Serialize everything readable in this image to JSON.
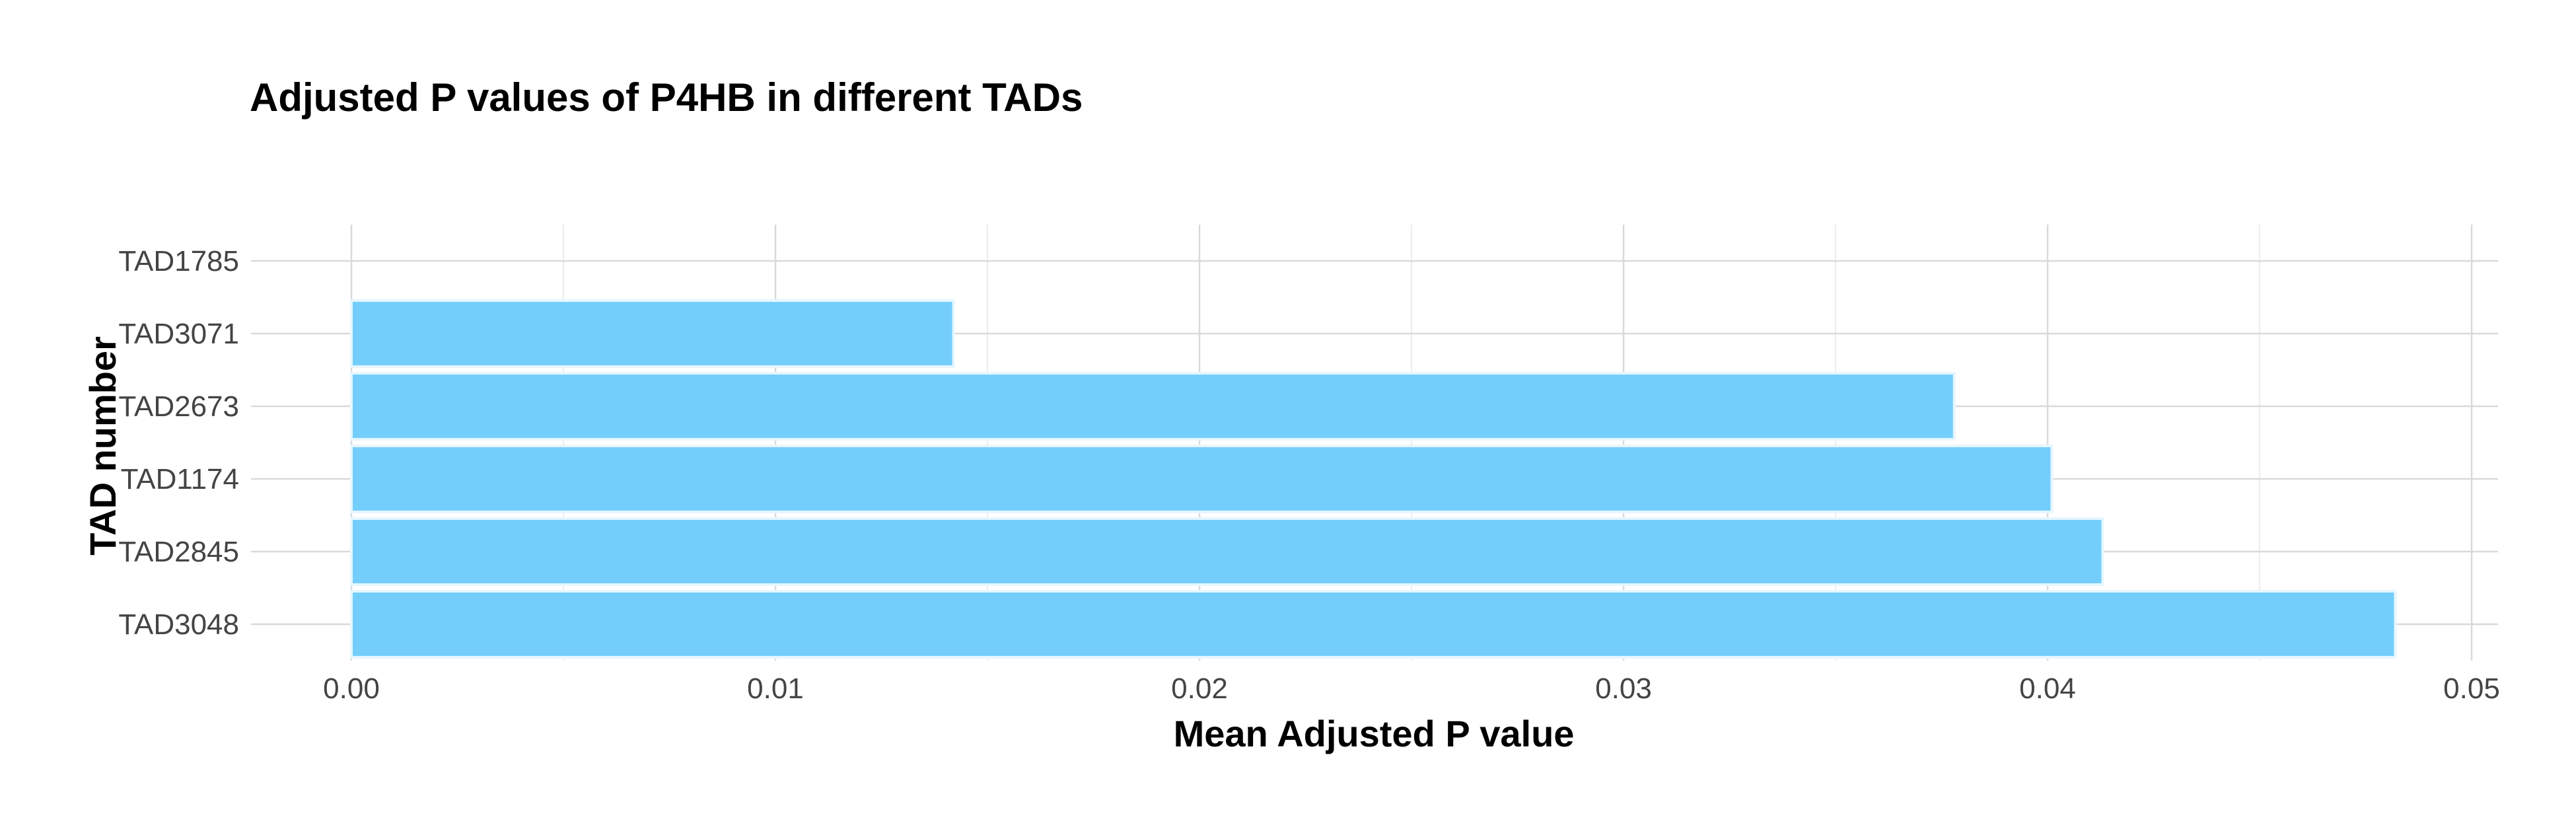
{
  "chart_data": {
    "type": "bar",
    "orientation": "horizontal",
    "title": "Adjusted P values of P4HB in different TADs",
    "xlabel": "Mean Adjusted P value",
    "ylabel": "TAD number",
    "categories": [
      "TAD3048",
      "TAD2845",
      "TAD1174",
      "TAD2673",
      "TAD3071",
      "TAD1785"
    ],
    "values": [
      0.0482,
      0.0413,
      0.0401,
      0.0378,
      0.0142,
      0.0
    ],
    "xlim": [
      0.0,
      0.05
    ],
    "xticks": [
      0.0,
      0.01,
      0.02,
      0.03,
      0.04,
      0.05
    ],
    "xtick_labels": [
      "0.00",
      "0.01",
      "0.02",
      "0.03",
      "0.04",
      "0.05"
    ],
    "bar_color": "#74cefb",
    "grid": true,
    "legend": "none"
  }
}
